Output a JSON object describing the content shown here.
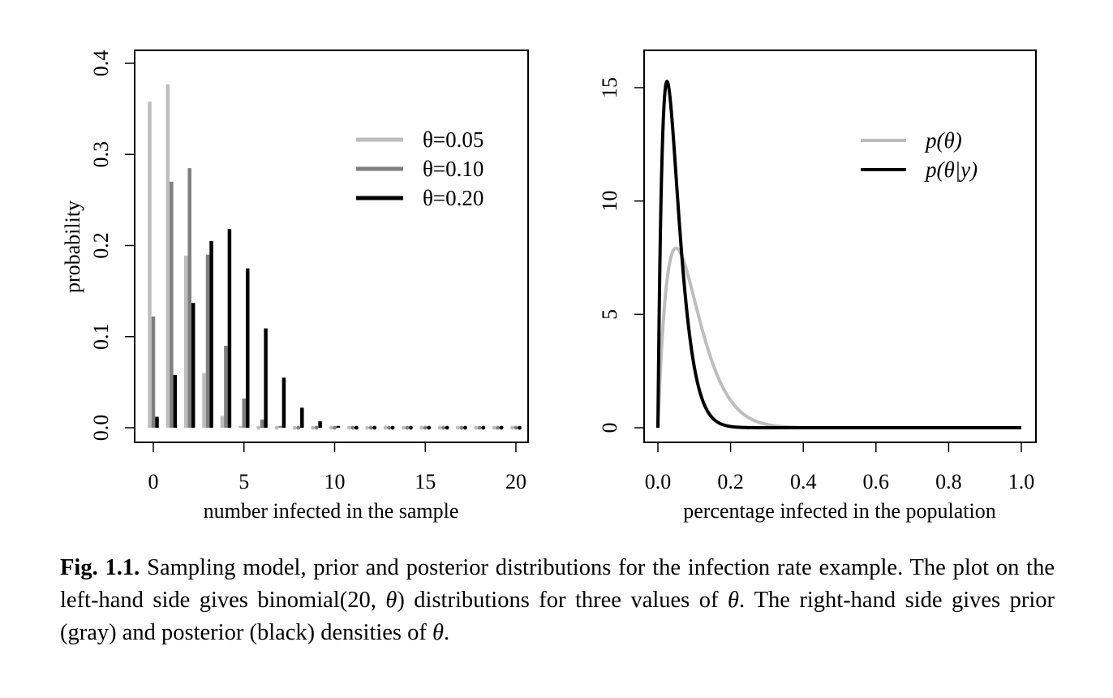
{
  "colors": {
    "light": "#bdbdbd",
    "mid": "#7f7f7f",
    "dark": "#000000"
  },
  "chart_data": [
    {
      "type": "bar",
      "xlabel": "number infected in the sample",
      "ylabel": "probability",
      "xlim": [
        -1,
        20.5
      ],
      "ylim": [
        0,
        0.42
      ],
      "xticks": [
        "0",
        "5",
        "10",
        "15",
        "20"
      ],
      "yticks": [
        "0.0",
        "0.1",
        "0.2",
        "0.3",
        "0.4"
      ],
      "legend_position": "top-right",
      "x": [
        0,
        1,
        2,
        3,
        4,
        5,
        6,
        7,
        8,
        9,
        10,
        11,
        12,
        13,
        14,
        15,
        16,
        17,
        18,
        19,
        20
      ],
      "series": [
        {
          "name": "θ=0.05",
          "color": "#bdbdbd",
          "values": [
            0.358,
            0.377,
            0.189,
            0.06,
            0.013,
            0.002,
            0.0003,
            0,
            0,
            0,
            0,
            0,
            0,
            0,
            0,
            0,
            0,
            0,
            0,
            0,
            0
          ]
        },
        {
          "name": "θ=0.10",
          "color": "#7f7f7f",
          "values": [
            0.122,
            0.27,
            0.285,
            0.19,
            0.09,
            0.032,
            0.009,
            0.002,
            0.0004,
            0.0001,
            0,
            0,
            0,
            0,
            0,
            0,
            0,
            0,
            0,
            0,
            0
          ]
        },
        {
          "name": "θ=0.20",
          "color": "#000000",
          "values": [
            0.012,
            0.058,
            0.137,
            0.205,
            0.218,
            0.175,
            0.109,
            0.055,
            0.022,
            0.007,
            0.002,
            0.0005,
            0.0001,
            0,
            0,
            0,
            0,
            0,
            0,
            0,
            0
          ]
        }
      ]
    },
    {
      "type": "line",
      "xlabel": "percentage infected in the population",
      "ylabel": "",
      "xlim": [
        0,
        1
      ],
      "ylim": [
        0,
        15.5
      ],
      "xticks": [
        "0.0",
        "0.2",
        "0.4",
        "0.6",
        "0.8",
        "1.0"
      ],
      "yticks": [
        "0",
        "5",
        "10",
        "15"
      ],
      "legend_position": "top-right",
      "series": [
        {
          "name": "p(θ)",
          "color": "#bdbdbd",
          "distribution": "beta",
          "a": 2,
          "b": 20
        },
        {
          "name": "p(θ|y)",
          "color": "#000000",
          "distribution": "beta",
          "a": 2,
          "b": 40
        }
      ]
    }
  ],
  "caption": {
    "label": "Fig. 1.1.",
    "text_1": " Sampling model, prior and posterior distributions for the infection rate example. The plot on the left-hand side gives binomial(20, ",
    "theta_1": "θ",
    "text_2": ") distributions for three values of ",
    "theta_2": "θ",
    "text_3": ". The right-hand side gives prior (gray) and posterior (black) densities of ",
    "theta_3": "θ",
    "text_4": "."
  }
}
